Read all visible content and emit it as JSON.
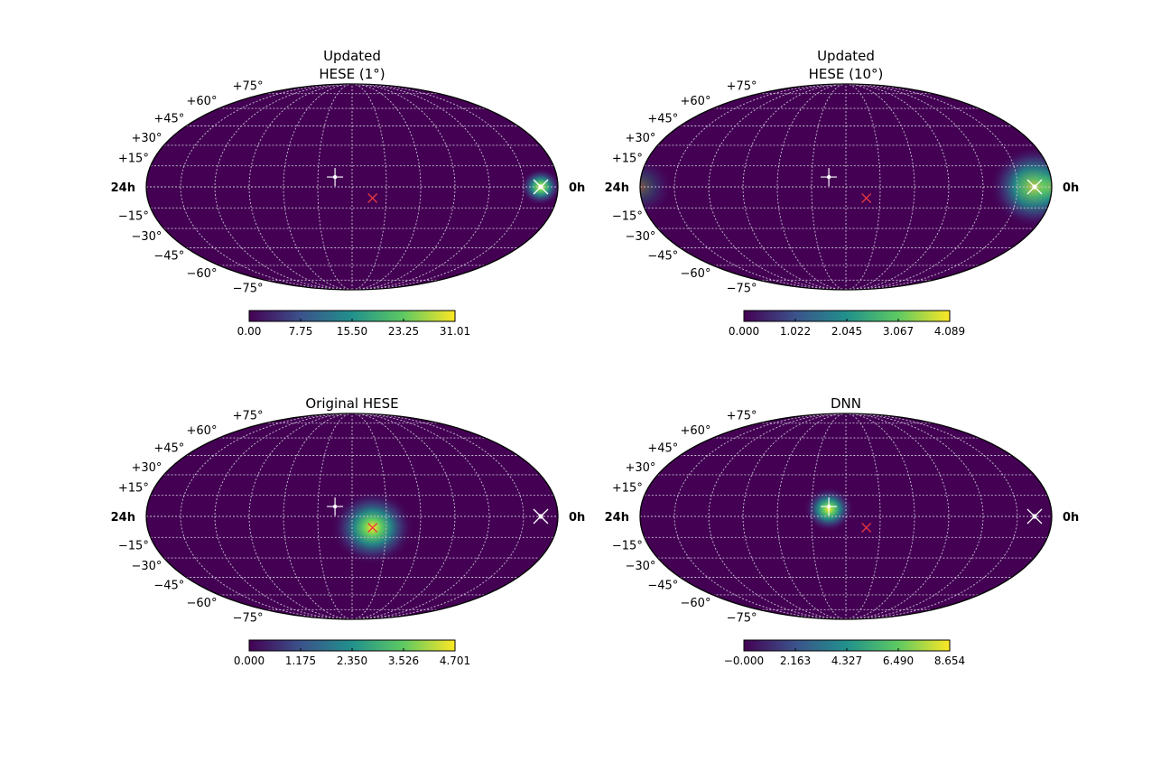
{
  "chart_data": [
    {
      "type": "heatmap",
      "projection": "mollweide",
      "title_lines": [
        "Updated",
        "HESE (1°)"
      ],
      "ra_labels": {
        "left": "24h",
        "right": "0h"
      },
      "dec_labels": [
        "+75°",
        "+60°",
        "+45°",
        "+30°",
        "+15°",
        "−15°",
        "−30°",
        "−45°",
        "−60°",
        "−75°"
      ],
      "colorbar": {
        "min": 0.0,
        "max": 31.01,
        "ticks": [
          "0.00",
          "7.75",
          "15.50",
          "23.25",
          "31.01"
        ]
      },
      "hotspots": [
        {
          "ra_h": 1.0,
          "dec": 0.0,
          "sigma_deg": 5,
          "peak": 1.0
        }
      ],
      "markers": [
        {
          "kind": "plus",
          "color": "#ffffff",
          "ra_h": 13.0,
          "dec": 7.0
        },
        {
          "kind": "cross",
          "color": "#e8383d",
          "ra_h": 10.8,
          "dec": -8.0
        },
        {
          "kind": "xstar",
          "color": "#ffffff",
          "ra_h": 1.0,
          "dec": 0.0
        }
      ]
    },
    {
      "type": "heatmap",
      "projection": "mollweide",
      "title_lines": [
        "Updated",
        "HESE (10°)"
      ],
      "ra_labels": {
        "left": "24h",
        "right": "0h"
      },
      "dec_labels": [
        "+75°",
        "+60°",
        "+45°",
        "+30°",
        "+15°",
        "−15°",
        "−30°",
        "−45°",
        "−60°",
        "−75°"
      ],
      "colorbar": {
        "min": 0.0,
        "max": 4.089,
        "ticks": [
          "0.000",
          "1.022",
          "2.045",
          "3.067",
          "4.089"
        ]
      },
      "hotspots": [
        {
          "ra_h": 1.0,
          "dec": 0.0,
          "sigma_deg": 11,
          "peak": 1.0
        },
        {
          "ra_h": 24.0,
          "dec": 0.0,
          "sigma_deg": 8,
          "peak": 0.35
        }
      ],
      "markers": [
        {
          "kind": "plus",
          "color": "#ffffff",
          "ra_h": 13.0,
          "dec": 7.0
        },
        {
          "kind": "cross",
          "color": "#e8383d",
          "ra_h": 10.8,
          "dec": -8.0
        },
        {
          "kind": "xstar",
          "color": "#ffffff",
          "ra_h": 1.0,
          "dec": 0.0
        }
      ]
    },
    {
      "type": "heatmap",
      "projection": "mollweide",
      "title_lines": [
        "Original HESE"
      ],
      "ra_labels": {
        "left": "24h",
        "right": "0h"
      },
      "dec_labels": [
        "+75°",
        "+60°",
        "+45°",
        "+30°",
        "+15°",
        "−15°",
        "−30°",
        "−45°",
        "−60°",
        "−75°"
      ],
      "colorbar": {
        "min": 0.0,
        "max": 4.701,
        "ticks": [
          "0.000",
          "1.175",
          "2.350",
          "3.526",
          "4.701"
        ]
      },
      "hotspots": [
        {
          "ra_h": 10.8,
          "dec": -8.0,
          "sigma_deg": 10,
          "peak": 1.0
        }
      ],
      "markers": [
        {
          "kind": "plus",
          "color": "#ffffff",
          "ra_h": 13.0,
          "dec": 7.0
        },
        {
          "kind": "cross",
          "color": "#e8383d",
          "ra_h": 10.8,
          "dec": -8.0
        },
        {
          "kind": "xstar",
          "color": "#ffffff",
          "ra_h": 1.0,
          "dec": 0.0
        }
      ]
    },
    {
      "type": "heatmap",
      "projection": "mollweide",
      "title_lines": [
        "DNN"
      ],
      "ra_labels": {
        "left": "24h",
        "right": "0h"
      },
      "dec_labels": [
        "+75°",
        "+60°",
        "+45°",
        "+30°",
        "+15°",
        "−15°",
        "−30°",
        "−45°",
        "−60°",
        "−75°"
      ],
      "colorbar": {
        "min": 0.0,
        "max": 8.654,
        "ticks": [
          "−0.000",
          "2.163",
          "4.327",
          "6.490",
          "8.654"
        ]
      },
      "hotspots": [
        {
          "ra_h": 13.0,
          "dec": 5.0,
          "sigma_deg": 6,
          "peak": 1.0
        }
      ],
      "markers": [
        {
          "kind": "plus",
          "color": "#ffffff",
          "ra_h": 13.0,
          "dec": 7.0
        },
        {
          "kind": "cross",
          "color": "#e8383d",
          "ra_h": 10.8,
          "dec": -8.0
        },
        {
          "kind": "xstar",
          "color": "#ffffff",
          "ra_h": 1.0,
          "dec": 0.0
        }
      ]
    }
  ],
  "colormap": [
    "#440154",
    "#3b528b",
    "#21918c",
    "#5ec962",
    "#fde725"
  ],
  "grid_color": "#c8c0d2"
}
